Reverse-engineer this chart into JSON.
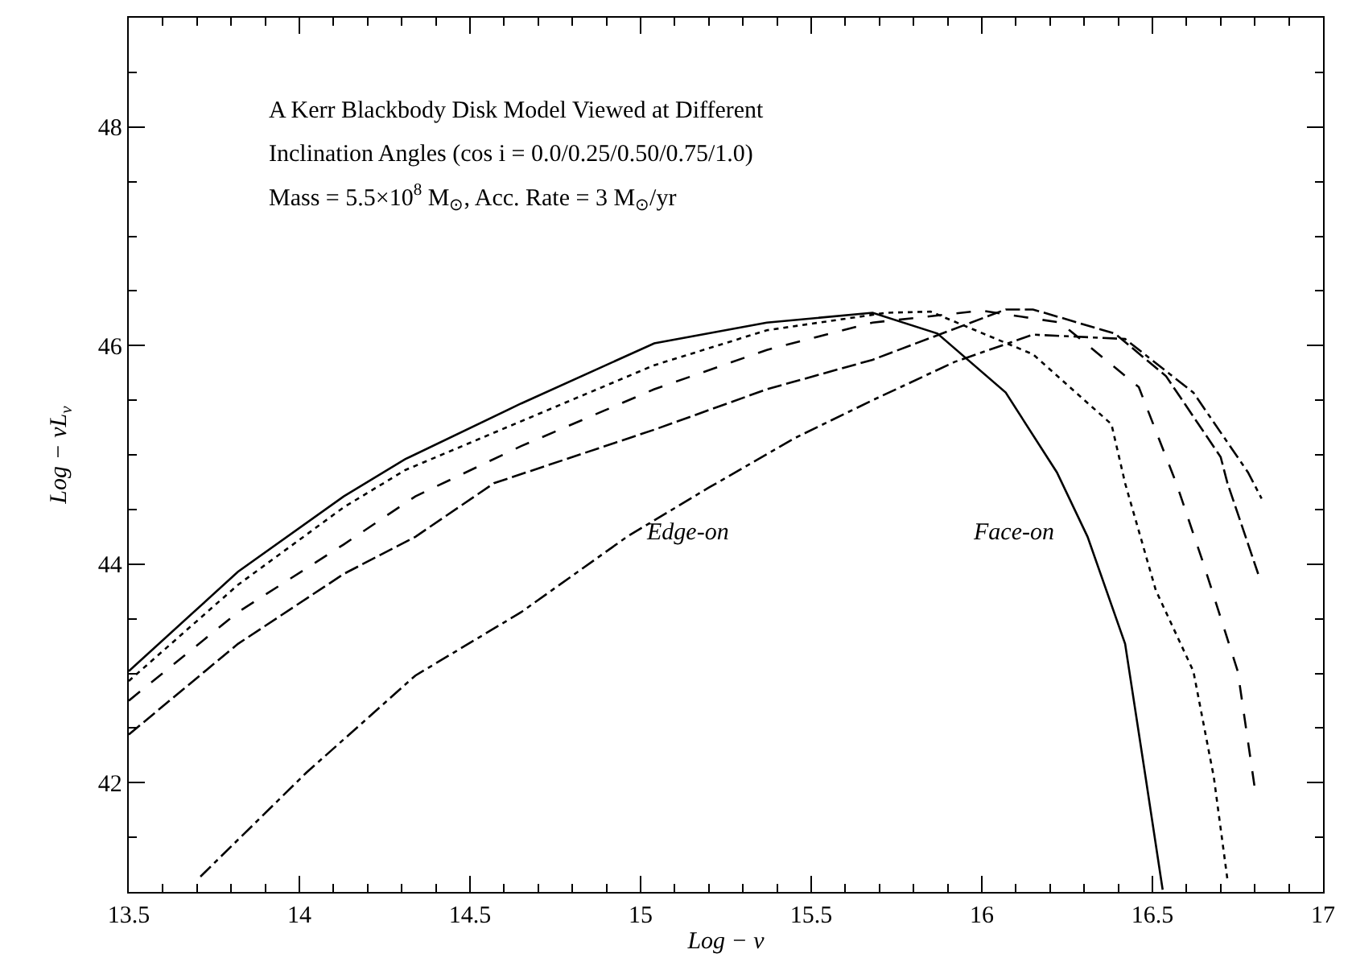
{
  "chart_data": {
    "type": "line",
    "xlabel": "Log − ν",
    "ylabel": "Log − νL$_{ν}$",
    "xlim": [
      13.5,
      17
    ],
    "ylim": [
      41,
      49
    ],
    "xticks": [
      13.5,
      {
        "value": 13.6,
        "label": null
      },
      {
        "value": 13.7,
        "label": null
      },
      {
        "value": 13.8,
        "label": null
      },
      {
        "value": 13.9,
        "label": null
      },
      14,
      {
        "value": 14.1,
        "label": null
      },
      {
        "value": 14.2,
        "label": null
      },
      {
        "value": 14.3,
        "label": null
      },
      {
        "value": 14.4,
        "label": null
      },
      14.5,
      {
        "value": 14.6,
        "label": null
      },
      {
        "value": 14.7,
        "label": null
      },
      {
        "value": 14.8,
        "label": null
      },
      {
        "value": 14.9,
        "label": null
      },
      15,
      {
        "value": 15.1,
        "label": null
      },
      {
        "value": 15.2,
        "label": null
      },
      {
        "value": 15.3,
        "label": null
      },
      {
        "value": 15.4,
        "label": null
      },
      15.5,
      {
        "value": 15.6,
        "label": null
      },
      {
        "value": 15.7,
        "label": null
      },
      {
        "value": 15.8,
        "label": null
      },
      {
        "value": 15.9,
        "label": null
      },
      16,
      {
        "value": 16.1,
        "label": null
      },
      {
        "value": 16.2,
        "label": null
      },
      {
        "value": 16.3,
        "label": null
      },
      {
        "value": 16.4,
        "label": null
      },
      16.5,
      {
        "value": 16.6,
        "label": null
      },
      {
        "value": 16.7,
        "label": null
      },
      {
        "value": 16.8,
        "label": null
      },
      {
        "value": 16.9,
        "label": null
      },
      17
    ],
    "yticks": [
      {
        "value": 41.5,
        "label": null
      },
      42,
      {
        "value": 42.5,
        "label": null
      },
      {
        "value": 43,
        "label": null
      },
      {
        "value": 43.5,
        "label": null
      },
      44,
      {
        "value": 44.5,
        "label": null
      },
      {
        "value": 45,
        "label": null
      },
      {
        "value": 45.5,
        "label": null
      },
      46,
      {
        "value": 46.5,
        "label": null
      },
      {
        "value": 47,
        "label": null
      },
      {
        "value": 47.5,
        "label": null
      },
      48,
      {
        "value": 48.5,
        "label": null
      }
    ],
    "marker": "none",
    "series": [
      {
        "color": "#000000",
        "line_style": "solid",
        "x": [
          13.5,
          13.82,
          14.13,
          14.31,
          14.65,
          15.04,
          15.37,
          15.68,
          15.87,
          16.07,
          16.22,
          16.31,
          16.42,
          16.48,
          16.53
        ],
        "values": [
          43.02,
          43.93,
          44.62,
          44.96,
          45.47,
          46.02,
          46.21,
          46.3,
          46.11,
          45.57,
          44.84,
          44.25,
          43.27,
          42.05,
          41.02
        ]
      },
      {
        "color": "#000000",
        "line_style": "dotted",
        "x": [
          13.5,
          13.82,
          14.13,
          14.31,
          15.04,
          15.37,
          15.72,
          15.85,
          16.15,
          16.38,
          16.42,
          16.51,
          16.62,
          16.68,
          16.72
        ],
        "values": [
          42.93,
          43.81,
          44.52,
          44.86,
          45.82,
          46.14,
          46.3,
          46.31,
          45.92,
          45.28,
          44.74,
          43.76,
          43.02,
          42.05,
          41.11
        ]
      },
      {
        "color": "#000000",
        "line_style": "dashed",
        "x": [
          13.5,
          13.82,
          14.13,
          14.34,
          14.65,
          15.04,
          15.37,
          15.68,
          16.0,
          16.23,
          16.46,
          16.57,
          16.65,
          16.75,
          16.8
        ],
        "values": [
          42.75,
          43.56,
          44.18,
          44.62,
          45.08,
          45.6,
          45.96,
          46.21,
          46.32,
          46.21,
          45.62,
          44.74,
          44.0,
          43.02,
          41.95
        ]
      },
      {
        "color": "#000000",
        "line_style": "longdash",
        "x": [
          13.5,
          13.82,
          14.13,
          14.34,
          14.57,
          15.04,
          15.37,
          15.68,
          15.79,
          16.07,
          16.15,
          16.39,
          16.54,
          16.7,
          16.72,
          16.81
        ],
        "values": [
          42.44,
          43.27,
          43.91,
          44.25,
          44.74,
          45.23,
          45.6,
          45.87,
          46.0,
          46.33,
          46.33,
          46.11,
          45.72,
          44.98,
          44.74,
          43.91
        ]
      },
      {
        "color": "#000000",
        "line_style": "dashdot",
        "x": [
          13.71,
          14.02,
          14.34,
          14.65,
          14.96,
          15.2,
          15.45,
          15.68,
          15.92,
          16.15,
          16.42,
          16.62,
          16.78,
          16.82
        ],
        "values": [
          41.14,
          42.09,
          42.98,
          43.56,
          44.25,
          44.7,
          45.15,
          45.5,
          45.85,
          46.1,
          46.06,
          45.57,
          44.84,
          44.6
        ]
      }
    ],
    "annotations": [
      "A Kerr Blackbody Disk Model Viewed at Different",
      "Inclination Angles (cos i = 0.0/0.25/0.50/0.75/1.0)",
      "Mass = 5.5×10$^{8}$ M$_{⊙}$, Acc. Rate = 3 M$_{⊙}$/yr",
      "Edge-on",
      "Face-on"
    ]
  }
}
